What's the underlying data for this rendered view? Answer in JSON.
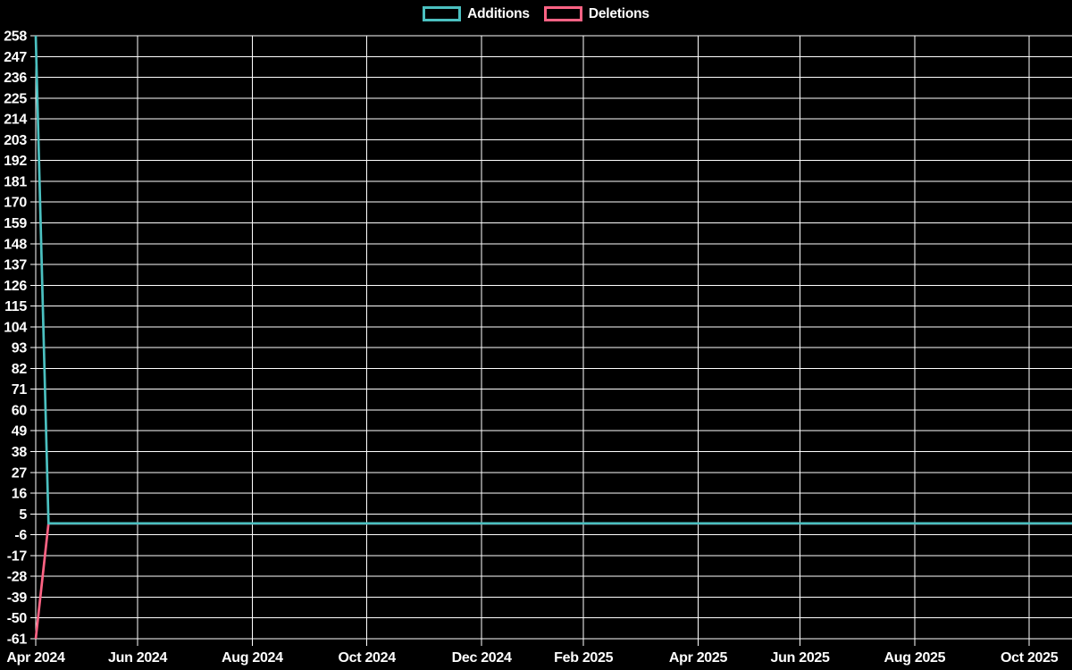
{
  "page": {
    "background": "#000000",
    "grid_color": "#ffffff",
    "text_color": "#ffffff"
  },
  "legend": {
    "position": "top",
    "items": [
      {
        "label": "Additions",
        "color": "#4bc0c0"
      },
      {
        "label": "Deletions",
        "color": "#ff6384"
      }
    ]
  },
  "chart_data": {
    "type": "line",
    "title": "",
    "background": "#000000",
    "legend_position": "top",
    "grid": {
      "show": true,
      "color": "#ffffff"
    },
    "x_axis": {
      "unit": "weeks (week 0 = week of Apr 1 2024, ~14.26 px per week)",
      "total_weeks": 81.35,
      "ticks": [
        {
          "label": "Apr 2024",
          "week": 0
        },
        {
          "label": "Jun 2024",
          "week": 8
        },
        {
          "label": "Aug 2024",
          "week": 17
        },
        {
          "label": "Oct 2024",
          "week": 26
        },
        {
          "label": "Dec 2024",
          "week": 35
        },
        {
          "label": "Feb 2025",
          "week": 43
        },
        {
          "label": "Apr 2025",
          "week": 52
        },
        {
          "label": "Jun 2025",
          "week": 60
        },
        {
          "label": "Aug 2025",
          "week": 69
        },
        {
          "label": "Oct 2025",
          "week": 78
        }
      ]
    },
    "y_axis": {
      "min": -61,
      "max": 258,
      "step": 11,
      "tick_labels": [
        258,
        247,
        236,
        225,
        214,
        203,
        192,
        181,
        170,
        159,
        148,
        137,
        126,
        115,
        104,
        93,
        82,
        71,
        60,
        49,
        38,
        27,
        16,
        5,
        -6,
        -17,
        -28,
        -39,
        -50,
        -61
      ]
    },
    "series": [
      {
        "name": "Additions",
        "color": "#4bc0c0",
        "points": [
          {
            "week": 0,
            "value": 258
          },
          {
            "week": 1,
            "value": 0
          },
          {
            "week": 81.35,
            "value": 0
          }
        ]
      },
      {
        "name": "Deletions",
        "color": "#ff6384",
        "points": [
          {
            "week": 0,
            "value": -61
          },
          {
            "week": 1,
            "value": 0
          },
          {
            "week": 81.35,
            "value": 0
          }
        ]
      }
    ]
  }
}
